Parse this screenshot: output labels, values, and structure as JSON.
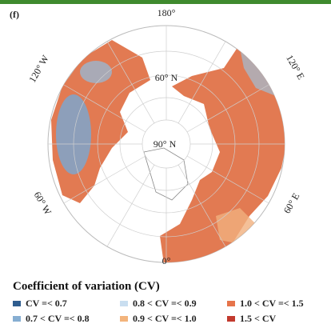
{
  "panel_label": "(f)",
  "longitude_labels": [
    "180°",
    "120° E",
    "60° E",
    "0°",
    "60° W",
    "120° W"
  ],
  "latitude_labels": [
    "60° N",
    "90° N"
  ],
  "legend": {
    "title": "Coefficient of variation (CV)",
    "items": [
      {
        "label": "CV =< 0.7",
        "color": "#2f5d8f"
      },
      {
        "label": "0.7 < CV =< 0.8",
        "color": "#86aed2"
      },
      {
        "label": "0.8 < CV =< 0.9",
        "color": "#c9def0"
      },
      {
        "label": "0.9 < CV =< 1.0",
        "color": "#f3b47c"
      },
      {
        "label": "1.0 < CV =< 1.5",
        "color": "#e6744b"
      },
      {
        "label": "1.5 < CV",
        "color": "#c23a2e"
      }
    ]
  }
}
